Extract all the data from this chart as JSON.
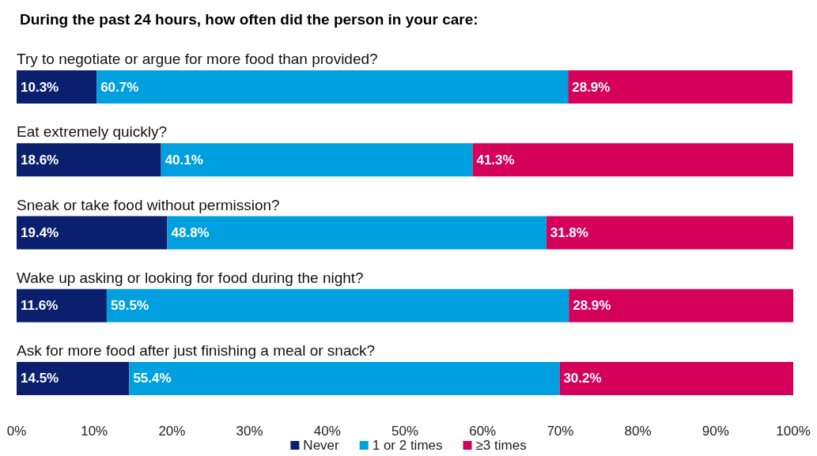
{
  "chart_data": {
    "type": "bar",
    "orientation": "horizontal",
    "stacked": true,
    "title": "During the past 24 hours, how often did the person in your care:",
    "categories": [
      "Try to negotiate or argue for more food than provided?",
      "Eat extremely quickly?",
      "Sneak or take food without permission?",
      "Wake up asking or looking for food during the night?",
      "Ask for more food after just finishing a meal or snack?"
    ],
    "series": [
      {
        "name": "Never",
        "color": "#0a1f6e",
        "values": [
          10.3,
          18.6,
          19.4,
          11.6,
          14.5
        ],
        "value_labels": [
          "10.3%",
          "18.6%",
          "19.4%",
          "11.6%",
          "14.5%"
        ]
      },
      {
        "name": "1 or 2 times",
        "color": "#009fdf",
        "values": [
          60.7,
          40.1,
          48.8,
          59.5,
          55.4
        ],
        "value_labels": [
          "60.7%",
          "40.1%",
          "48.8%",
          "59.5%",
          "55.4%"
        ]
      },
      {
        "name": "≥3 times",
        "color": "#d4005a",
        "values": [
          28.9,
          41.3,
          31.8,
          28.9,
          30.2
        ],
        "value_labels": [
          "28.9%",
          "41.3%",
          "31.8%",
          "28.9%",
          "30.2%"
        ]
      }
    ],
    "xlim": [
      0,
      100
    ],
    "xticks": [
      {
        "value": 0,
        "label": "0%"
      },
      {
        "value": 10,
        "label": "10%"
      },
      {
        "value": 20,
        "label": "20%"
      },
      {
        "value": 30,
        "label": "30%"
      },
      {
        "value": 40,
        "label": "40%"
      },
      {
        "value": 50,
        "label": "50%"
      },
      {
        "value": 60,
        "label": "60%"
      },
      {
        "value": 70,
        "label": "70%"
      },
      {
        "value": 80,
        "label": "80%"
      },
      {
        "value": 90,
        "label": "90%"
      },
      {
        "value": 100,
        "label": "100%"
      }
    ],
    "grid": false,
    "legend": "bottom"
  }
}
